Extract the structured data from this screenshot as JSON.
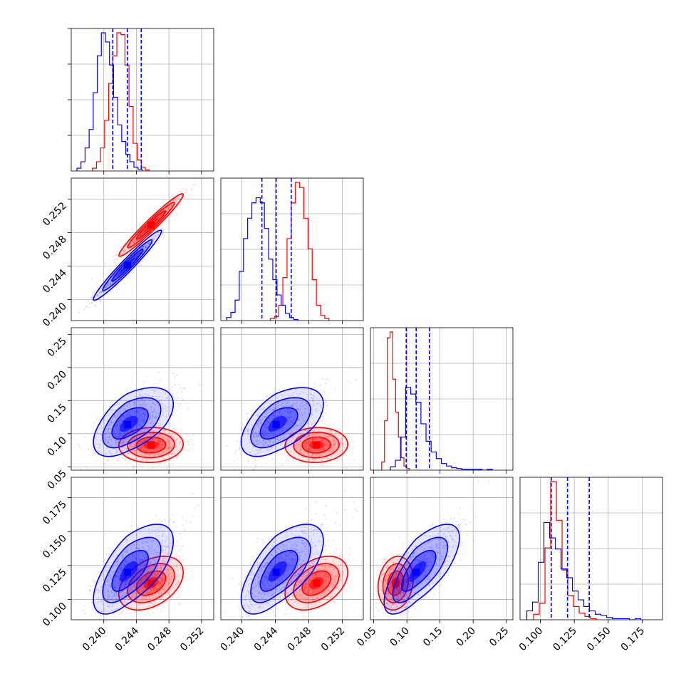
{
  "chart_data": {
    "type": "corner",
    "grid": true,
    "colors": {
      "series_a": "#0000ff",
      "series_b": "#ff0000"
    },
    "series": [
      {
        "color_key": "series_a"
      },
      {
        "color_key": "series_b"
      }
    ],
    "params": [
      {
        "range": [
          0.236,
          0.2535
        ],
        "ticks": [
          "0.240",
          "0.244",
          "0.248",
          "0.252"
        ],
        "tick_values": [
          0.24,
          0.244,
          0.248,
          0.252
        ]
      },
      {
        "range": [
          0.2375,
          0.2545
        ],
        "ticks": [
          "0.240",
          "0.244",
          "0.248",
          "0.252"
        ],
        "tick_values": [
          0.24,
          0.244,
          0.248,
          0.252
        ]
      },
      {
        "range": [
          0.045,
          0.26
        ],
        "ticks": [
          "0.05",
          "0.10",
          "0.15",
          "0.20",
          "0.25"
        ],
        "tick_values": [
          0.05,
          0.1,
          0.15,
          0.2,
          0.25
        ]
      },
      {
        "range": [
          0.085,
          0.19
        ],
        "ticks": [
          "0.100",
          "0.125",
          "0.150",
          "0.175"
        ],
        "tick_values": [
          0.1,
          0.125,
          0.15,
          0.175
        ]
      }
    ],
    "quantiles_series_a": [
      [
        0.2411,
        0.2429,
        0.2446
      ],
      [
        0.2424,
        0.2441,
        0.2459
      ],
      [
        0.099,
        0.114,
        0.134
      ],
      [
        0.108,
        0.12,
        0.136
      ]
    ],
    "hist_series_a": [
      {
        "start": 0.2367,
        "width": 0.0005,
        "counts": [
          3,
          10,
          25,
          45,
          85,
          125,
          150,
          140,
          115,
          80,
          50,
          32,
          18,
          10,
          4,
          2
        ]
      },
      {
        "start": 0.2382,
        "width": 0.0005,
        "counts": [
          3,
          8,
          20,
          48,
          80,
          100,
          115,
          120,
          115,
          90,
          60,
          40,
          25,
          15,
          7,
          3,
          1
        ]
      },
      {
        "start": 0.075,
        "width": 0.0077,
        "counts": [
          4,
          12,
          40,
          100,
          92,
          82,
          56,
          35,
          22,
          14,
          8,
          5,
          3,
          2,
          1,
          1,
          1,
          1,
          0,
          1
        ]
      },
      {
        "start": 0.09,
        "width": 0.0042,
        "counts": [
          8,
          16,
          52,
          88,
          74,
          64,
          46,
          38,
          26,
          18,
          12,
          8,
          5,
          4,
          2,
          1,
          1,
          1,
          0,
          1
        ]
      }
    ],
    "hist_series_b": [
      {
        "start": 0.2386,
        "width": 0.0005,
        "counts": [
          3,
          10,
          25,
          55,
          95,
          125,
          150,
          148,
          115,
          70,
          30,
          12,
          4,
          1
        ]
      },
      {
        "start": 0.2434,
        "width": 0.0005,
        "counts": [
          2,
          4,
          15,
          42,
          80,
          115,
          135,
          130,
          100,
          70,
          40,
          15,
          5,
          2
        ]
      },
      {
        "start": 0.062,
        "width": 0.0042,
        "counts": [
          10,
          60,
          160,
          167,
          110,
          70,
          40,
          15,
          5,
          2
        ]
      },
      {
        "start": 0.095,
        "width": 0.0042,
        "counts": [
          5,
          15,
          65,
          125,
          90,
          45,
          22,
          12,
          6,
          3,
          1
        ]
      }
    ],
    "centers_series_a": [
      0.2429,
      0.2441,
      0.114,
      0.12
    ],
    "centers_series_b": [
      0.2458,
      0.2489,
      0.083,
      0.112
    ],
    "correlations_series_a": {
      "1-0": 0.97,
      "2-0": 0.55,
      "2-1": 0.55,
      "3-0": 0.65,
      "3-1": 0.65,
      "3-2": 0.72
    },
    "correlations_series_b": {
      "1-0": 0.97,
      "2-0": 0.05,
      "2-1": 0.05,
      "3-0": 0.4,
      "3-1": 0.4,
      "3-2": 0.15
    },
    "spread_series_a": [
      0.0019,
      0.0019,
      0.022,
      0.014
    ],
    "spread_series_b": [
      0.0018,
      0.0017,
      0.012,
      0.009
    ]
  }
}
